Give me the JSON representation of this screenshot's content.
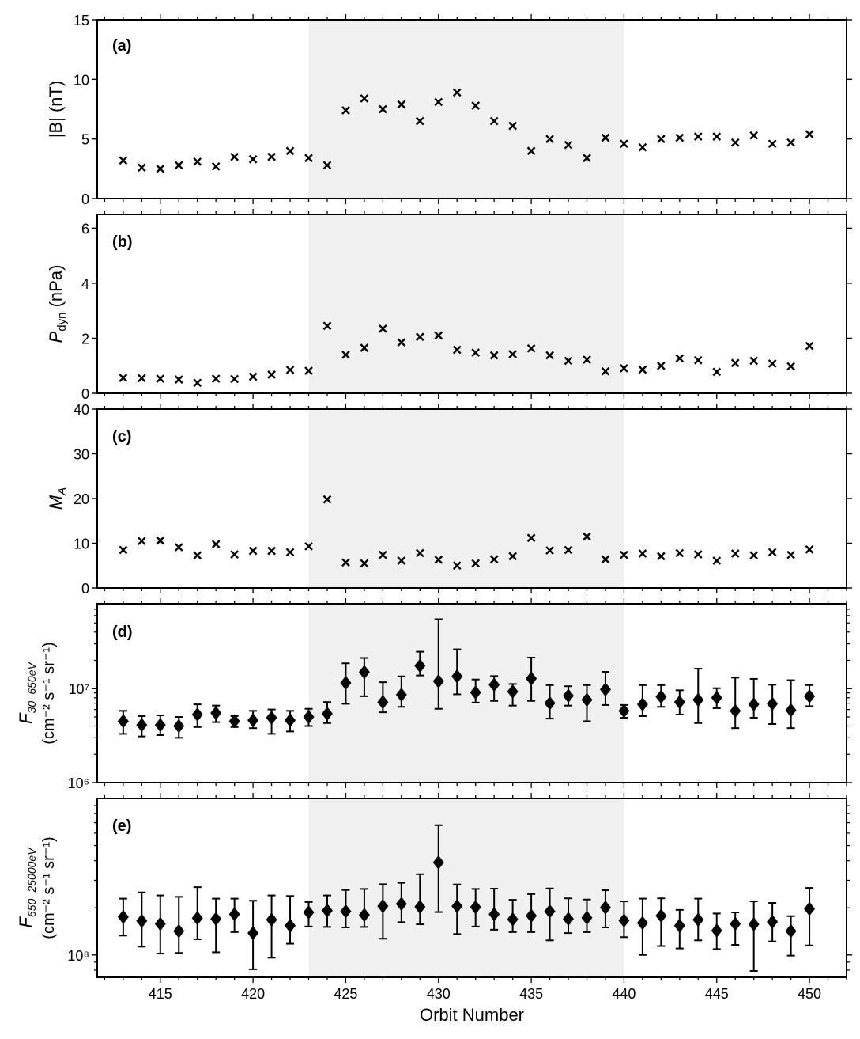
{
  "chart_data": [
    {
      "panel": "(a)",
      "type": "scatter",
      "ylabel": "|B| (nT)",
      "yscale": "linear",
      "ylim": [
        0,
        15
      ],
      "yticks": [
        "0",
        "5",
        "10",
        "15"
      ],
      "shaded_region": [
        423,
        440
      ],
      "x": [
        413,
        414,
        415,
        416,
        417,
        418,
        419,
        420,
        421,
        422,
        423,
        424,
        425,
        426,
        427,
        428,
        429,
        430,
        431,
        432,
        433,
        434,
        435,
        436,
        437,
        438,
        439,
        440,
        441,
        442,
        443,
        444,
        445,
        446,
        447,
        448,
        449,
        450
      ],
      "values": [
        3.2,
        2.6,
        2.5,
        2.8,
        3.1,
        2.7,
        3.5,
        3.3,
        3.5,
        4.0,
        3.4,
        2.8,
        7.4,
        8.4,
        7.5,
        7.9,
        6.5,
        8.1,
        8.9,
        7.8,
        6.5,
        6.1,
        4.0,
        5.0,
        4.5,
        3.4,
        5.1,
        4.6,
        4.3,
        5.0,
        5.1,
        5.2,
        5.2,
        4.7,
        5.3,
        4.6,
        4.7,
        5.4
      ]
    },
    {
      "panel": "(b)",
      "type": "scatter",
      "ylabel": "P",
      "ylabel_sub": "dyn",
      "ylabel_unit": "(nPa)",
      "yscale": "linear",
      "ylim": [
        0,
        6.5
      ],
      "yticks": [
        "0",
        "2",
        "4",
        "6"
      ],
      "shaded_region": [
        423,
        440
      ],
      "x": [
        413,
        414,
        415,
        416,
        417,
        418,
        419,
        420,
        421,
        422,
        423,
        424,
        425,
        426,
        427,
        428,
        429,
        430,
        431,
        432,
        433,
        434,
        435,
        436,
        437,
        438,
        439,
        440,
        441,
        442,
        443,
        444,
        445,
        446,
        447,
        448,
        449,
        450
      ],
      "values": [
        0.56,
        0.55,
        0.53,
        0.5,
        0.38,
        0.53,
        0.52,
        0.6,
        0.68,
        0.85,
        0.82,
        2.45,
        1.4,
        1.65,
        2.35,
        1.85,
        2.05,
        2.1,
        1.58,
        1.48,
        1.38,
        1.42,
        1.63,
        1.38,
        1.18,
        1.22,
        0.8,
        0.91,
        0.86,
        1.0,
        1.27,
        1.2,
        0.78,
        1.1,
        1.18,
        1.08,
        0.98,
        1.72
      ]
    },
    {
      "panel": "(c)",
      "type": "scatter",
      "ylabel": "M",
      "ylabel_sub": "A",
      "yscale": "linear",
      "ylim": [
        0,
        40
      ],
      "yticks": [
        "0",
        "10",
        "20",
        "30",
        "40"
      ],
      "shaded_region": [
        423,
        440
      ],
      "x": [
        413,
        414,
        415,
        416,
        417,
        418,
        419,
        420,
        421,
        422,
        423,
        424,
        425,
        426,
        427,
        428,
        429,
        430,
        431,
        432,
        433,
        434,
        435,
        436,
        437,
        438,
        439,
        440,
        441,
        442,
        443,
        444,
        445,
        446,
        447,
        448,
        449,
        450
      ],
      "values": [
        8.5,
        10.5,
        10.6,
        9.1,
        7.3,
        9.8,
        7.5,
        8.3,
        8.3,
        8.0,
        9.3,
        19.8,
        5.7,
        5.5,
        7.4,
        6.1,
        7.8,
        6.3,
        5.0,
        5.5,
        6.4,
        7.1,
        11.2,
        8.4,
        8.5,
        11.5,
        6.4,
        7.4,
        7.7,
        7.1,
        7.8,
        7.5,
        6.1,
        7.7,
        7.3,
        8.0,
        7.4,
        8.6
      ]
    },
    {
      "panel": "(d)",
      "type": "scatter",
      "ylabel": "F",
      "ylabel_sub": "30−650eV",
      "ylabel_unit": "(cm⁻² s⁻¹ sr⁻¹)",
      "yscale": "log",
      "ylim": [
        1000000,
        80000000
      ],
      "yticks": [
        "10⁶",
        "10⁷"
      ],
      "shaded_region": [
        423,
        440
      ],
      "x": [
        413,
        414,
        415,
        416,
        417,
        418,
        419,
        420,
        421,
        422,
        423,
        424,
        425,
        426,
        427,
        428,
        429,
        430,
        431,
        432,
        433,
        434,
        435,
        436,
        437,
        438,
        439,
        440,
        441,
        442,
        443,
        444,
        445,
        446,
        447,
        448,
        449,
        450
      ],
      "values": [
        4500000.0,
        4100000.0,
        4100000.0,
        4000000.0,
        5300000.0,
        5500000.0,
        4500000.0,
        4600000.0,
        4900000.0,
        4600000.0,
        5000000.0,
        5400000.0,
        11500000.0,
        15000000.0,
        7200000.0,
        8600000.0,
        17500000.0,
        12000000.0,
        13500000.0,
        9100000.0,
        11000000.0,
        9300000.0,
        12800000.0,
        7000000.0,
        8400000.0,
        7600000.0,
        9800000.0,
        5800000.0,
        6800000.0,
        8200000.0,
        7200000.0,
        7600000.0,
        8000000.0,
        5800000.0,
        6800000.0,
        6900000.0,
        5900000.0,
        8300000.0
      ],
      "err_low": [
        3300000.0,
        3100000.0,
        3200000.0,
        3000000.0,
        3900000.0,
        4400000.0,
        3900000.0,
        3800000.0,
        3300000.0,
        3500000.0,
        4000000.0,
        4300000.0,
        6900000.0,
        8300000.0,
        5600000.0,
        6400000.0,
        13800000.0,
        6100000.0,
        8700000.0,
        7100000.0,
        7400000.0,
        6600000.0,
        7400000.0,
        4800000.0,
        6600000.0,
        4500000.0,
        6700000.0,
        4900000.0,
        5100000.0,
        6400000.0,
        5300000.0,
        4300000.0,
        6200000.0,
        3800000.0,
        4900000.0,
        4200000.0,
        3800000.0,
        6500000.0
      ],
      "err_high": [
        5800000.0,
        5100000.0,
        5200000.0,
        5000000.0,
        6800000.0,
        6600000.0,
        5100000.0,
        5800000.0,
        6000000.0,
        5800000.0,
        6100000.0,
        7200000.0,
        18600000.0,
        21200000.0,
        11700000.0,
        13500000.0,
        24700000.0,
        54800000.0,
        26200000.0,
        12500000.0,
        13600000.0,
        11200000.0,
        21400000.0,
        10900000.0,
        10600000.0,
        10900000.0,
        15100000.0,
        6700000.0,
        10900000.0,
        10900000.0,
        9600000.0,
        16300000.0,
        10100000.0,
        13100000.0,
        12700000.0,
        11000000.0,
        12300000.0,
        10900000.0
      ]
    },
    {
      "panel": "(e)",
      "type": "scatter",
      "ylabel": "F",
      "ylabel_sub": "650−25000eV",
      "ylabel_unit": "(cm⁻² s⁻¹ sr⁻¹)",
      "yscale": "log",
      "ylim": [
        72000000,
        1000000000
      ],
      "yticks": [
        "10⁸"
      ],
      "shaded_region": [
        423,
        440
      ],
      "x": [
        413,
        414,
        415,
        416,
        417,
        418,
        419,
        420,
        421,
        422,
        423,
        424,
        425,
        426,
        427,
        428,
        429,
        430,
        431,
        432,
        433,
        434,
        435,
        436,
        437,
        438,
        439,
        440,
        441,
        442,
        443,
        444,
        445,
        446,
        447,
        448,
        449,
        450
      ],
      "values": [
        175000000.0,
        165000000.0,
        158000000.0,
        142000000.0,
        172000000.0,
        170000000.0,
        182000000.0,
        138000000.0,
        168000000.0,
        154000000.0,
        187000000.0,
        192000000.0,
        190000000.0,
        180000000.0,
        205000000.0,
        212000000.0,
        203000000.0,
        390000000.0,
        205000000.0,
        202000000.0,
        182000000.0,
        169000000.0,
        178000000.0,
        190000000.0,
        170000000.0,
        173000000.0,
        201000000.0,
        166000000.0,
        160000000.0,
        178000000.0,
        154000000.0,
        168000000.0,
        143000000.0,
        158000000.0,
        157000000.0,
        163000000.0,
        142000000.0,
        197000000.0
      ],
      "err_low": [
        133000000.0,
        113000000.0,
        102000000.0,
        103000000.0,
        126000000.0,
        104000000.0,
        140000000.0,
        81000000.0,
        96000000.0,
        118000000.0,
        152000000.0,
        151000000.0,
        150000000.0,
        151000000.0,
        127000000.0,
        162000000.0,
        157000000.0,
        188000000.0,
        136000000.0,
        152000000.0,
        145000000.0,
        140000000.0,
        140000000.0,
        124000000.0,
        138000000.0,
        140000000.0,
        150000000.0,
        130000000.0,
        100000000.0,
        114000000.0,
        110000000.0,
        124000000.0,
        109000000.0,
        116000000.0,
        79000000.0,
        122000000.0,
        99000000.0,
        115000000.0
      ],
      "err_high": [
        229000000.0,
        251000000.0,
        240000000.0,
        235000000.0,
        271000000.0,
        229000000.0,
        229000000.0,
        222000000.0,
        240000000.0,
        238000000.0,
        218000000.0,
        240000000.0,
        260000000.0,
        264000000.0,
        283000000.0,
        289000000.0,
        328000000.0,
        675000000.0,
        282000000.0,
        264000000.0,
        265000000.0,
        225000000.0,
        245000000.0,
        266000000.0,
        230000000.0,
        226000000.0,
        259000000.0,
        220000000.0,
        229000000.0,
        230000000.0,
        194000000.0,
        229000000.0,
        184000000.0,
        187000000.0,
        220000000.0,
        215000000.0,
        177000000.0,
        268000000.0
      ]
    }
  ],
  "xaxis": {
    "label": "Orbit Number",
    "xlim": [
      411.6,
      452
    ],
    "ticks": [
      415,
      420,
      425,
      430,
      435,
      440,
      445,
      450
    ],
    "tick_labels": [
      "415",
      "420",
      "425",
      "430",
      "435",
      "440",
      "445",
      "450"
    ]
  },
  "colors": {
    "shade": "#f0f0f0",
    "marker": "#000000"
  }
}
